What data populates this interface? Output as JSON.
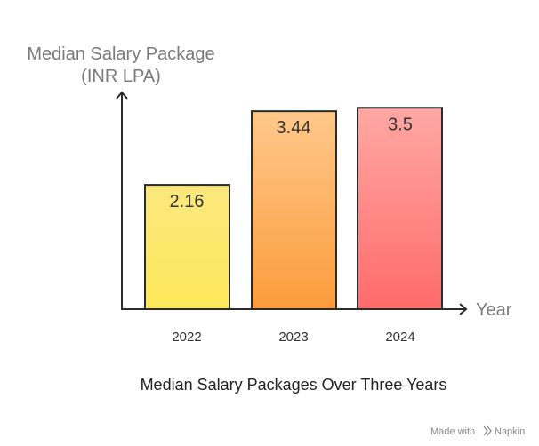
{
  "chart_data": {
    "type": "bar",
    "categories": [
      "2022",
      "2023",
      "2024"
    ],
    "values": [
      2.16,
      3.44,
      3.5
    ],
    "data_labels": [
      "2.16",
      "3.44",
      "3.5"
    ],
    "title": "Median Salary Packages Over Three Years",
    "ylabel": [
      "Median Salary Package",
      "(INR LPA)"
    ],
    "xlabel": "Year",
    "ylim": [
      0,
      3.72
    ],
    "grid": false,
    "legend": "none",
    "bar_colors": [
      {
        "top": "#fbe87e",
        "bottom": "#fde85a",
        "stroke": "#2b2b2b"
      },
      {
        "top": "#ffc88a",
        "bottom": "#fb9c3c",
        "stroke": "#2b2b2b"
      },
      {
        "top": "#ffa8a3",
        "bottom": "#ff6b6b",
        "stroke": "#2b2b2b"
      }
    ],
    "axis_color": "#2b2b2b"
  },
  "footer": {
    "made_with": "Made with",
    "brand": "Napkin",
    "brand_icon": "napkin-logo-icon"
  }
}
